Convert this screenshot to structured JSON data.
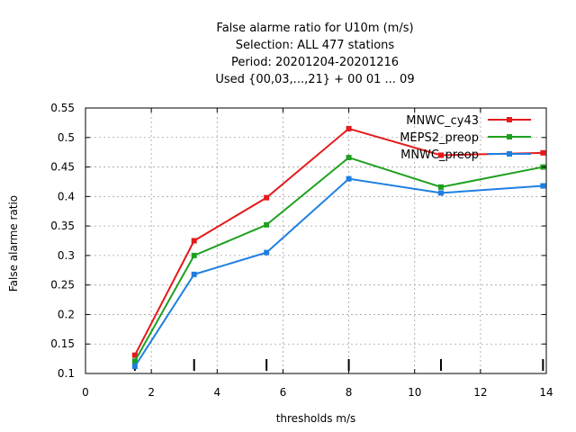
{
  "chart_data": {
    "type": "line",
    "title_lines": [
      "False alarme ratio  for U10m (m/s)",
      "Selection: ALL    477 stations",
      "Period: 20201204-20201216",
      "Used {00,03,...,21} + 00 01 ... 09"
    ],
    "xlabel": "thresholds m/s",
    "ylabel": "False alarme ratio",
    "xlim": [
      0,
      14
    ],
    "ylim": [
      0.1,
      0.55
    ],
    "x_ticks": [
      0,
      2,
      4,
      6,
      8,
      10,
      12,
      14
    ],
    "y_ticks": [
      0.1,
      0.15,
      0.2,
      0.25,
      0.3,
      0.35,
      0.4,
      0.45,
      0.5,
      0.55
    ],
    "x_tick_labels": [
      "0",
      "2",
      "4",
      "6",
      "8",
      "10",
      "12",
      "14"
    ],
    "y_tick_labels": [
      "0.1",
      "0.15",
      "0.2",
      "0.25",
      "0.3",
      "0.35",
      "0.4",
      "0.45",
      "0.5",
      "0.55"
    ],
    "grid": true,
    "legend_position": "top-right",
    "x": [
      1.5,
      3.3,
      5.5,
      8.0,
      10.8,
      13.9
    ],
    "series": [
      {
        "name": "MNWC_cy43",
        "color": "#e41a1c",
        "values": [
          0.131,
          0.325,
          0.398,
          0.515,
          0.47,
          0.474
        ]
      },
      {
        "name": "MEPS2_preop",
        "color": "#1ea01e",
        "values": [
          0.121,
          0.3,
          0.352,
          0.466,
          0.416,
          0.45
        ]
      },
      {
        "name": "MNWC_preop",
        "color": "#1f7fe0",
        "values": [
          0.112,
          0.268,
          0.305,
          0.43,
          0.406,
          0.418
        ]
      }
    ]
  }
}
